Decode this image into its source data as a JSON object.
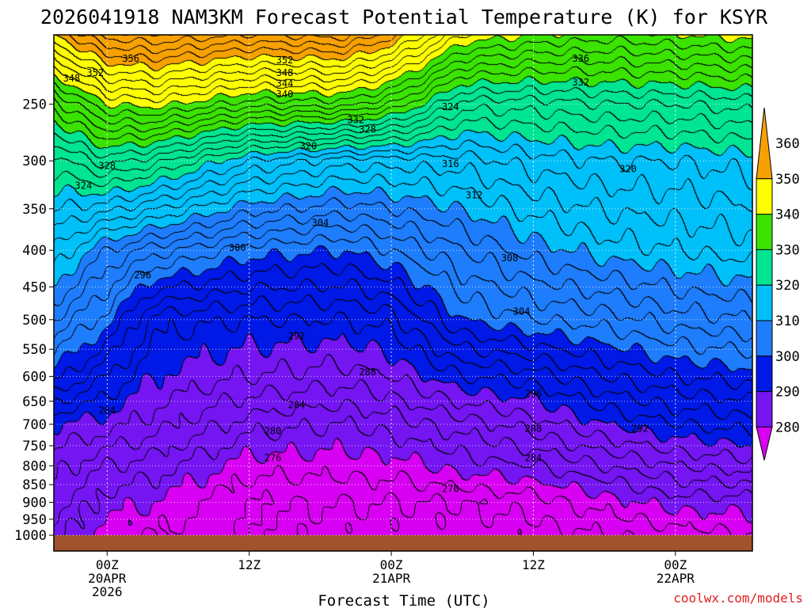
{
  "chart_data": {
    "type": "heatmap",
    "title": "2026041918 NAM3KM Forecast Potential Temperature (K) for KSYR",
    "xlabel": "Forecast Time (UTC)",
    "ylabel": "",
    "credit": "coolwx.com/models",
    "y_axis": {
      "scale": "log-pressure",
      "range": [
        1000,
        200
      ],
      "ticks": [
        "250",
        "300",
        "350",
        "400",
        "450",
        "500",
        "550",
        "600",
        "650",
        "700",
        "750",
        "800",
        "850",
        "900",
        "950",
        "1000"
      ]
    },
    "x_axis": {
      "range_hours": [
        -4.5,
        54.5
      ],
      "ticks": [
        {
          "hour": 0,
          "lines": [
            "00Z",
            "20APR",
            "2026"
          ]
        },
        {
          "hour": 12,
          "lines": [
            "12Z"
          ]
        },
        {
          "hour": 24,
          "lines": [
            "00Z",
            "21APR"
          ]
        },
        {
          "hour": 36,
          "lines": [
            "12Z"
          ]
        },
        {
          "hour": 48,
          "lines": [
            "00Z",
            "22APR"
          ]
        }
      ]
    },
    "colorbar": {
      "ticks": [
        "360",
        "350",
        "340",
        "330",
        "320",
        "310",
        "300",
        "290",
        "280"
      ],
      "bins": [
        {
          "min": 350,
          "max": 360,
          "color": "#f7a100"
        },
        {
          "min": 340,
          "max": 350,
          "color": "#fefe00"
        },
        {
          "min": 330,
          "max": 340,
          "color": "#3ae300"
        },
        {
          "min": 320,
          "max": 330,
          "color": "#00e592"
        },
        {
          "min": 310,
          "max": 320,
          "color": "#00c0f9"
        },
        {
          "min": 300,
          "max": 310,
          "color": "#1e7dfc"
        },
        {
          "min": 290,
          "max": 300,
          "color": "#0019e6"
        },
        {
          "min": 280,
          "max": 290,
          "color": "#7415f2"
        },
        {
          "min": 270,
          "max": 280,
          "color": "#d800f2"
        }
      ]
    },
    "theta_profiles_K": [
      {
        "hour": -4.5,
        "p1000": 283,
        "p900": 285,
        "p800": 287,
        "p700": 290,
        "p600": 299,
        "p500": 306,
        "p400": 314,
        "p300": 323,
        "p250": 333,
        "p200": 350
      },
      {
        "hour": 0,
        "p1000": 279,
        "p900": 281,
        "p800": 284,
        "p700": 289,
        "p600": 294,
        "p500": 301,
        "p400": 308,
        "p300": 327,
        "p250": 340,
        "p200": 357
      },
      {
        "hour": 4,
        "p1000": 278,
        "p900": 280,
        "p800": 283,
        "p700": 287,
        "p600": 290,
        "p500": 293,
        "p400": 305,
        "p300": 325,
        "p250": 341,
        "p200": 358
      },
      {
        "hour": 12,
        "p1000": 276,
        "p900": 276,
        "p800": 279,
        "p700": 283,
        "p600": 288,
        "p500": 292,
        "p400": 301,
        "p300": 318,
        "p250": 337,
        "p200": 356
      },
      {
        "hour": 20,
        "p1000": 275,
        "p900": 276,
        "p800": 279,
        "p700": 282,
        "p600": 287,
        "p500": 292,
        "p400": 300,
        "p300": 315,
        "p250": 337,
        "p200": 357
      },
      {
        "hour": 24,
        "p1000": 275,
        "p900": 276,
        "p800": 279,
        "p700": 283,
        "p600": 288,
        "p500": 293,
        "p400": 302,
        "p300": 315,
        "p250": 334,
        "p200": 353
      },
      {
        "hour": 30,
        "p1000": 275,
        "p900": 276,
        "p800": 281,
        "p700": 285,
        "p600": 292,
        "p500": 300,
        "p400": 306,
        "p300": 315,
        "p250": 325,
        "p200": 342
      },
      {
        "hour": 36,
        "p1000": 275,
        "p900": 277,
        "p800": 282,
        "p700": 287,
        "p600": 293,
        "p500": 302,
        "p400": 309,
        "p300": 317,
        "p250": 325,
        "p200": 340
      },
      {
        "hour": 42,
        "p1000": 276,
        "p900": 279,
        "p800": 284,
        "p700": 290,
        "p600": 296,
        "p500": 303,
        "p400": 311,
        "p300": 318,
        "p250": 326,
        "p200": 339
      },
      {
        "hour": 48,
        "p1000": 277,
        "p900": 281,
        "p800": 286,
        "p700": 292,
        "p600": 298,
        "p500": 305,
        "p400": 312,
        "p300": 318,
        "p250": 326,
        "p200": 340
      },
      {
        "hour": 54.5,
        "p1000": 278,
        "p900": 281,
        "p800": 287,
        "p700": 293,
        "p600": 299,
        "p500": 306,
        "p400": 313,
        "p300": 319,
        "p250": 327,
        "p200": 341
      }
    ],
    "contour_interval_K": 2,
    "contour_labels": [
      {
        "text": "356",
        "hour": 2,
        "p": 216
      },
      {
        "text": "352",
        "hour": 15,
        "p": 217
      },
      {
        "text": "336",
        "hour": 40,
        "p": 216
      },
      {
        "text": "348",
        "hour": -3,
        "p": 230
      },
      {
        "text": "352",
        "hour": -1,
        "p": 226
      },
      {
        "text": "348",
        "hour": 15,
        "p": 226
      },
      {
        "text": "344",
        "hour": 15,
        "p": 234
      },
      {
        "text": "332",
        "hour": 40,
        "p": 233
      },
      {
        "text": "340",
        "hour": 15,
        "p": 242
      },
      {
        "text": "324",
        "hour": 29,
        "p": 252
      },
      {
        "text": "332",
        "hour": 21,
        "p": 263
      },
      {
        "text": "328",
        "hour": 22,
        "p": 271
      },
      {
        "text": "320",
        "hour": 17,
        "p": 286
      },
      {
        "text": "316",
        "hour": 29,
        "p": 303
      },
      {
        "text": "328",
        "hour": 0,
        "p": 305
      },
      {
        "text": "320",
        "hour": 44,
        "p": 308
      },
      {
        "text": "324",
        "hour": -2,
        "p": 325
      },
      {
        "text": "312",
        "hour": 31,
        "p": 335
      },
      {
        "text": "304",
        "hour": 18,
        "p": 366
      },
      {
        "text": "300",
        "hour": 11,
        "p": 397
      },
      {
        "text": "308",
        "hour": 34,
        "p": 410
      },
      {
        "text": "296",
        "hour": 3,
        "p": 433
      },
      {
        "text": "304",
        "hour": 35,
        "p": 487
      },
      {
        "text": "292",
        "hour": 16,
        "p": 527
      },
      {
        "text": "288",
        "hour": 22,
        "p": 592
      },
      {
        "text": "296",
        "hour": 36,
        "p": 635
      },
      {
        "text": "284",
        "hour": 0,
        "p": 670
      },
      {
        "text": "284",
        "hour": 16,
        "p": 658
      },
      {
        "text": "288",
        "hour": 36,
        "p": 710
      },
      {
        "text": "292",
        "hour": 45,
        "p": 710
      },
      {
        "text": "280",
        "hour": 14,
        "p": 715
      },
      {
        "text": "284",
        "hour": 36,
        "p": 780
      },
      {
        "text": "276",
        "hour": 14,
        "p": 780
      },
      {
        "text": "276",
        "hour": 29,
        "p": 862
      }
    ]
  }
}
